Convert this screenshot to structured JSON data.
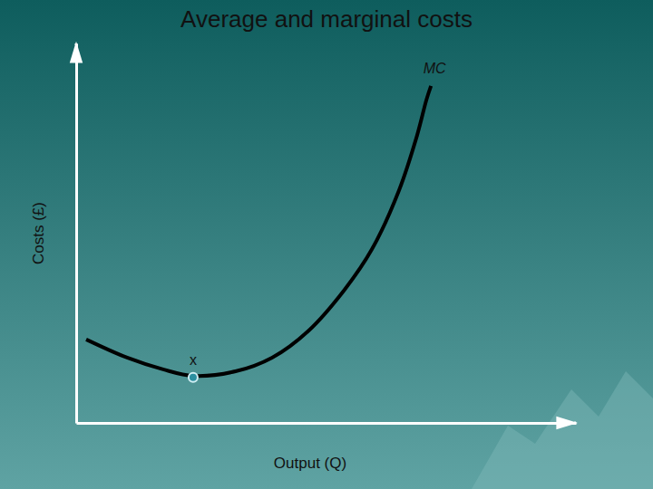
{
  "chart_data": {
    "type": "line",
    "title": "Average and marginal costs",
    "x_label": "Output (Q)",
    "y_label": "Costs (£)",
    "x": [
      0.2,
      1.02,
      1.74,
      2.34,
      3.19,
      3.92,
      4.65,
      5.37,
      5.92,
      6.46,
      6.82,
      7.01,
      7.1
    ],
    "series": [
      {
        "name": "MC",
        "color": "#000000",
        "values": [
          2.2,
          1.72,
          1.41,
          1.24,
          1.36,
          1.72,
          2.43,
          3.51,
          4.58,
          6.13,
          7.57,
          8.52,
          8.88
        ]
      }
    ],
    "xlim": [
      0,
      10
    ],
    "ylim": [
      0,
      10
    ],
    "tick_labels": false,
    "grid": false,
    "annotations": [
      {
        "text": "x",
        "x": 2.34,
        "y": 1.2
      }
    ]
  }
}
